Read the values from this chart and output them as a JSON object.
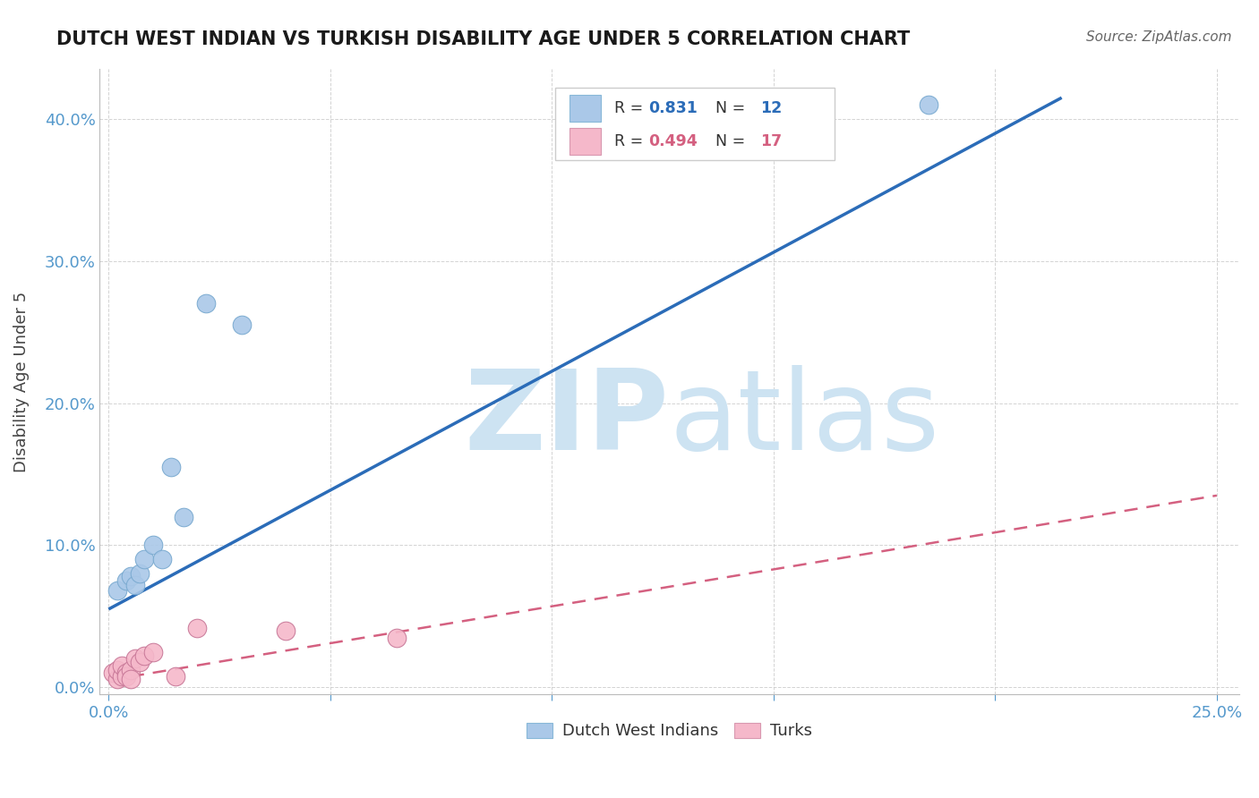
{
  "title": "DUTCH WEST INDIAN VS TURKISH DISABILITY AGE UNDER 5 CORRELATION CHART",
  "source": "Source: ZipAtlas.com",
  "ylabel": "Disability Age Under 5",
  "y_ticks": [
    0.0,
    0.1,
    0.2,
    0.3,
    0.4
  ],
  "x_ticks": [
    0.0,
    0.05,
    0.1,
    0.15,
    0.2,
    0.25
  ],
  "xlim": [
    -0.002,
    0.255
  ],
  "ylim": [
    -0.005,
    0.435
  ],
  "blue_scatter": [
    [
      0.002,
      0.068
    ],
    [
      0.004,
      0.075
    ],
    [
      0.005,
      0.078
    ],
    [
      0.006,
      0.072
    ],
    [
      0.007,
      0.08
    ],
    [
      0.008,
      0.09
    ],
    [
      0.01,
      0.1
    ],
    [
      0.012,
      0.09
    ],
    [
      0.014,
      0.155
    ],
    [
      0.017,
      0.12
    ],
    [
      0.022,
      0.27
    ],
    [
      0.03,
      0.255
    ],
    [
      0.185,
      0.41
    ]
  ],
  "pink_scatter": [
    [
      0.001,
      0.01
    ],
    [
      0.002,
      0.006
    ],
    [
      0.002,
      0.012
    ],
    [
      0.003,
      0.008
    ],
    [
      0.003,
      0.015
    ],
    [
      0.004,
      0.01
    ],
    [
      0.004,
      0.008
    ],
    [
      0.005,
      0.012
    ],
    [
      0.005,
      0.006
    ],
    [
      0.006,
      0.02
    ],
    [
      0.007,
      0.018
    ],
    [
      0.008,
      0.022
    ],
    [
      0.01,
      0.025
    ],
    [
      0.015,
      0.008
    ],
    [
      0.02,
      0.042
    ],
    [
      0.04,
      0.04
    ],
    [
      0.065,
      0.035
    ]
  ],
  "blue_line_x": [
    0.0,
    0.215
  ],
  "blue_line_y": [
    0.055,
    0.415
  ],
  "pink_line_x": [
    0.0,
    0.25
  ],
  "pink_line_y": [
    0.005,
    0.135
  ],
  "blue_scatter_color": "#aac8e8",
  "pink_scatter_color": "#f5b8ca",
  "blue_line_color": "#2b6cb8",
  "pink_line_color": "#d46080",
  "watermark_color": "#cde3f2",
  "background_color": "#ffffff",
  "grid_color": "#c8c8c8",
  "title_color": "#1a1a1a",
  "tick_label_color": "#5599cc",
  "axis_label_color": "#444444",
  "source_color": "#666666",
  "legend_border_color": "#cccccc",
  "legend_text_color": "#333333"
}
